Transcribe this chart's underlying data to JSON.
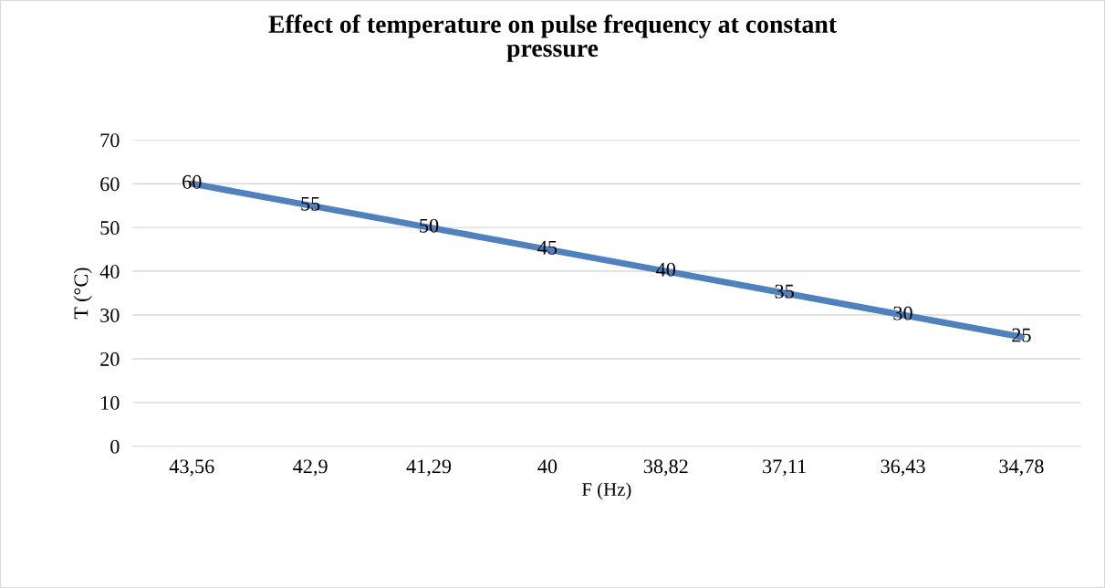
{
  "chart_data": {
    "type": "line",
    "title": "Effect of temperature on pulse frequency at constant\npressure",
    "xlabel": "F (Hz)",
    "ylabel": "T (°C)",
    "categories": [
      "43,56",
      "42,9",
      "41,29",
      "40",
      "38,82",
      "37,11",
      "36,43",
      "34,78"
    ],
    "series": [
      {
        "color": "#4f81bd",
        "values": [
          60,
          55,
          50,
          45,
          40,
          35,
          30,
          25
        ]
      }
    ],
    "ylim": [
      0,
      70
    ],
    "yticks": [
      0,
      10,
      20,
      30,
      40,
      50,
      60,
      70
    ],
    "grid": "y",
    "data_labels": true,
    "marker": "none",
    "line_style": "solid"
  }
}
